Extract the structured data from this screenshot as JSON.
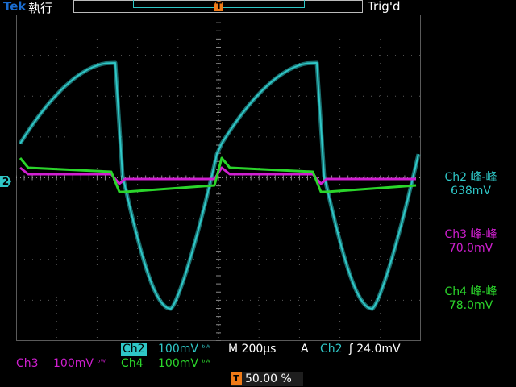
{
  "header": {
    "brand": "Tek",
    "acq_state": "執行",
    "trigger_status": "Trig'd",
    "trigger_marker": "T"
  },
  "channel_marker": "2",
  "colors": {
    "ch2": "#2fc7c7",
    "ch3": "#d01fd0",
    "ch4": "#2bd52b",
    "marker": "#ef7a17",
    "grid": "#5a5a5a"
  },
  "measurements": [
    {
      "label": "Ch2 峰-峰",
      "value": "638mV",
      "color": "#2fc7c7"
    },
    {
      "label": "Ch3 峰-峰",
      "value": "70.0mV",
      "color": "#d01fd0"
    },
    {
      "label": "Ch4 峰-峰",
      "value": "78.0mV",
      "color": "#2bd52b"
    }
  ],
  "bottom": {
    "ch2_name": "Ch2",
    "ch2_scale": "100mV",
    "ch3_name": "Ch3",
    "ch3_scale": "100mV",
    "ch4_name": "Ch4",
    "ch4_scale": "100mV",
    "bw_glyph": "ᵇᵂ",
    "timebase_label": "M",
    "timebase": "200µs",
    "trigger_mode": "A",
    "trigger_source": "Ch2",
    "trigger_slope": "ʃ",
    "trigger_level": "24.0mV",
    "position_marker": "T",
    "position": "50.00 %"
  }
}
